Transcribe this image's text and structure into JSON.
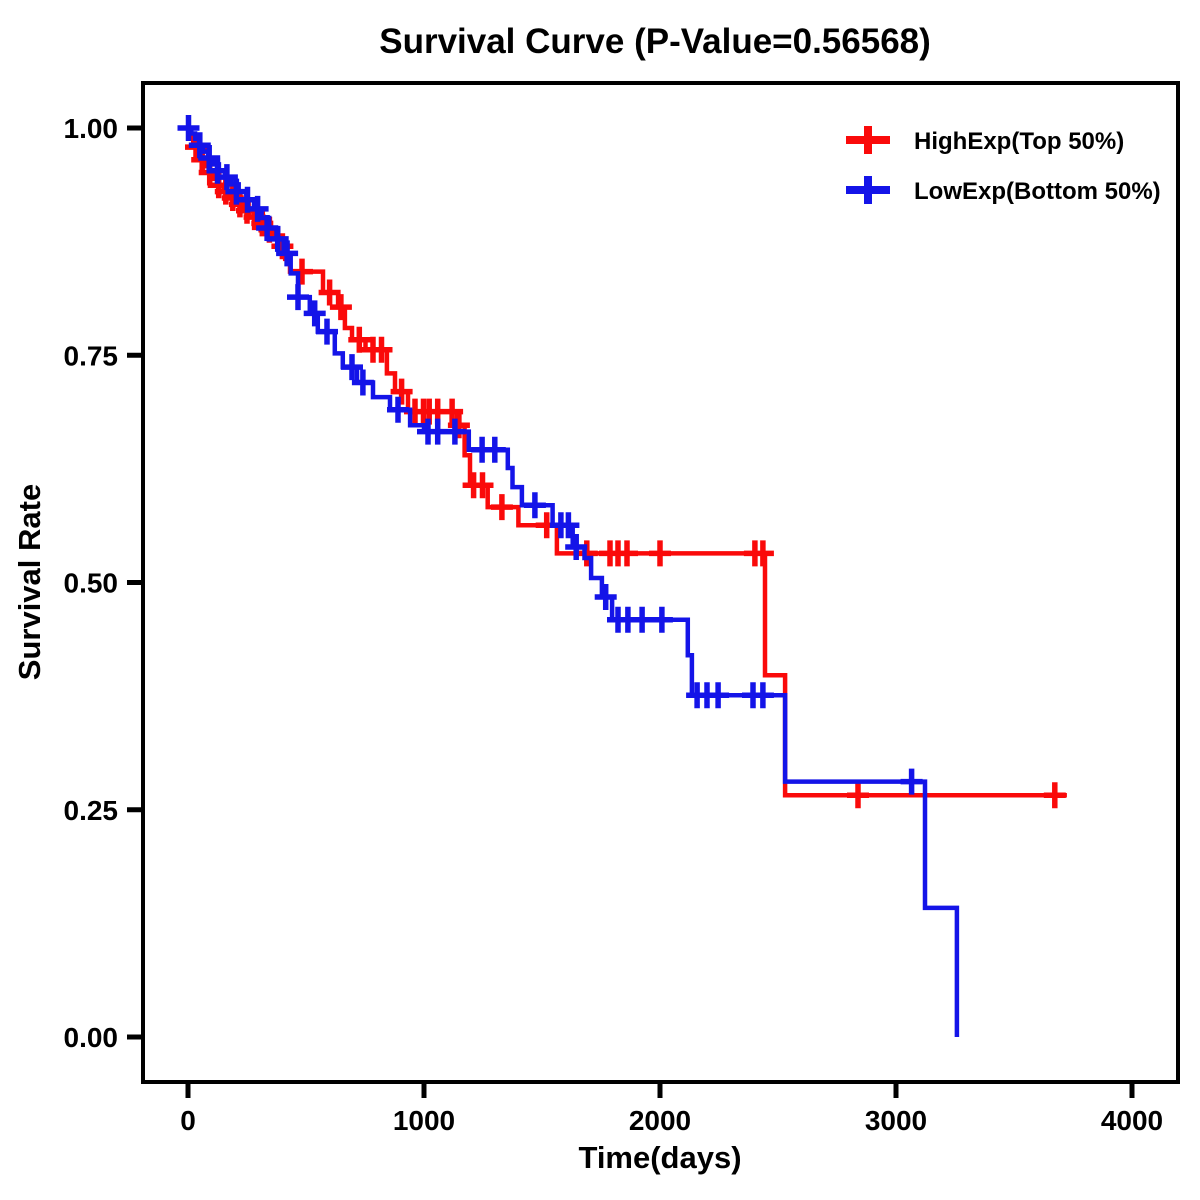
{
  "chart_data": {
    "type": "line",
    "subtype": "kaplan-meier-survival-step",
    "title": "Survival Curve (P-Value=0.56568)",
    "p_value": "0.56568",
    "xlabel": "Time(days)",
    "ylabel": "Survival Rate",
    "xlim": [
      0,
      4000
    ],
    "ylim": [
      0.0,
      1.0
    ],
    "x_ticks": [
      0,
      1000,
      2000,
      3000,
      4000
    ],
    "x_tick_labels": [
      "0",
      "1000",
      "2000",
      "3000",
      "4000"
    ],
    "y_ticks": [
      0.0,
      0.25,
      0.5,
      0.75,
      1.0
    ],
    "y_tick_labels": [
      "0.00",
      "0.25",
      "0.50",
      "0.75",
      "1.00"
    ],
    "grid": false,
    "legend_position": "top-right",
    "series": [
      {
        "name": "HighExp(Top 50%)",
        "color": "#fa0a0a",
        "steps": [
          [
            0,
            1.0
          ],
          [
            10,
            0.993
          ],
          [
            22,
            0.986
          ],
          [
            34,
            0.979
          ],
          [
            46,
            0.972
          ],
          [
            60,
            0.965
          ],
          [
            75,
            0.958
          ],
          [
            92,
            0.951
          ],
          [
            110,
            0.944
          ],
          [
            130,
            0.937
          ],
          [
            152,
            0.93
          ],
          [
            176,
            0.923
          ],
          [
            202,
            0.916
          ],
          [
            230,
            0.909
          ],
          [
            260,
            0.902
          ],
          [
            292,
            0.895
          ],
          [
            325,
            0.888
          ],
          [
            358,
            0.88
          ],
          [
            390,
            0.87
          ],
          [
            412,
            0.856
          ],
          [
            432,
            0.842
          ],
          [
            572,
            0.819
          ],
          [
            636,
            0.803
          ],
          [
            665,
            0.78
          ],
          [
            695,
            0.767
          ],
          [
            752,
            0.756
          ],
          [
            843,
            0.73
          ],
          [
            877,
            0.71
          ],
          [
            932,
            0.688
          ],
          [
            1140,
            0.673
          ],
          [
            1172,
            0.64
          ],
          [
            1195,
            0.607
          ],
          [
            1270,
            0.583
          ],
          [
            1400,
            0.563
          ],
          [
            1563,
            0.532
          ],
          [
            2445,
            0.398
          ],
          [
            2530,
            0.266
          ],
          [
            3724,
            0.266
          ]
        ],
        "censor_marks": [
          [
            34,
            0.979
          ],
          [
            60,
            0.965
          ],
          [
            92,
            0.951
          ],
          [
            130,
            0.937
          ],
          [
            160,
            0.93
          ],
          [
            190,
            0.923
          ],
          [
            220,
            0.916
          ],
          [
            250,
            0.909
          ],
          [
            282,
            0.902
          ],
          [
            315,
            0.895
          ],
          [
            345,
            0.888
          ],
          [
            400,
            0.87
          ],
          [
            483,
            0.842
          ],
          [
            600,
            0.819
          ],
          [
            648,
            0.803
          ],
          [
            726,
            0.767
          ],
          [
            784,
            0.756
          ],
          [
            820,
            0.756
          ],
          [
            905,
            0.71
          ],
          [
            962,
            0.688
          ],
          [
            998,
            0.688
          ],
          [
            1022,
            0.688
          ],
          [
            1058,
            0.688
          ],
          [
            1119,
            0.688
          ],
          [
            1148,
            0.673
          ],
          [
            1210,
            0.607
          ],
          [
            1248,
            0.607
          ],
          [
            1330,
            0.583
          ],
          [
            1520,
            0.563
          ],
          [
            1690,
            0.532
          ],
          [
            1788,
            0.532
          ],
          [
            1822,
            0.532
          ],
          [
            1860,
            0.532
          ],
          [
            2000,
            0.532
          ],
          [
            2402,
            0.532
          ],
          [
            2436,
            0.532
          ],
          [
            2839,
            0.266
          ],
          [
            3673,
            0.266
          ]
        ]
      },
      {
        "name": "LowExp(Bottom 50%)",
        "color": "#1414e8",
        "steps": [
          [
            0,
            1.0
          ],
          [
            14,
            0.994
          ],
          [
            30,
            0.988
          ],
          [
            47,
            0.981
          ],
          [
            65,
            0.974
          ],
          [
            85,
            0.967
          ],
          [
            107,
            0.96
          ],
          [
            131,
            0.953
          ],
          [
            157,
            0.946
          ],
          [
            185,
            0.938
          ],
          [
            215,
            0.93
          ],
          [
            247,
            0.921
          ],
          [
            280,
            0.911
          ],
          [
            312,
            0.901
          ],
          [
            344,
            0.89
          ],
          [
            375,
            0.878
          ],
          [
            405,
            0.862
          ],
          [
            435,
            0.84
          ],
          [
            466,
            0.814
          ],
          [
            516,
            0.796
          ],
          [
            550,
            0.776
          ],
          [
            622,
            0.752
          ],
          [
            656,
            0.737
          ],
          [
            716,
            0.72
          ],
          [
            784,
            0.704
          ],
          [
            856,
            0.69
          ],
          [
            941,
            0.673
          ],
          [
            1000,
            0.666
          ],
          [
            1190,
            0.646
          ],
          [
            1355,
            0.626
          ],
          [
            1375,
            0.605
          ],
          [
            1415,
            0.585
          ],
          [
            1545,
            0.563
          ],
          [
            1630,
            0.539
          ],
          [
            1680,
            0.527
          ],
          [
            1708,
            0.505
          ],
          [
            1754,
            0.484
          ],
          [
            1797,
            0.459
          ],
          [
            2118,
            0.42
          ],
          [
            2135,
            0.376
          ],
          [
            2530,
            0.281
          ],
          [
            3123,
            0.142
          ],
          [
            3258,
            0.0
          ]
        ],
        "censor_marks": [
          [
            2,
            1.0
          ],
          [
            50,
            0.981
          ],
          [
            90,
            0.967
          ],
          [
            125,
            0.953
          ],
          [
            165,
            0.946
          ],
          [
            205,
            0.93
          ],
          [
            252,
            0.921
          ],
          [
            295,
            0.911
          ],
          [
            335,
            0.89
          ],
          [
            380,
            0.878
          ],
          [
            420,
            0.862
          ],
          [
            466,
            0.814
          ],
          [
            537,
            0.796
          ],
          [
            589,
            0.776
          ],
          [
            695,
            0.737
          ],
          [
            741,
            0.72
          ],
          [
            890,
            0.69
          ],
          [
            1017,
            0.666
          ],
          [
            1058,
            0.666
          ],
          [
            1131,
            0.666
          ],
          [
            1246,
            0.646
          ],
          [
            1300,
            0.646
          ],
          [
            1470,
            0.585
          ],
          [
            1580,
            0.563
          ],
          [
            1612,
            0.563
          ],
          [
            1645,
            0.539
          ],
          [
            1770,
            0.484
          ],
          [
            1822,
            0.459
          ],
          [
            1864,
            0.459
          ],
          [
            1924,
            0.459
          ],
          [
            2008,
            0.459
          ],
          [
            2157,
            0.376
          ],
          [
            2199,
            0.376
          ],
          [
            2246,
            0.376
          ],
          [
            2394,
            0.376
          ],
          [
            2436,
            0.376
          ],
          [
            3066,
            0.281
          ]
        ]
      }
    ]
  }
}
